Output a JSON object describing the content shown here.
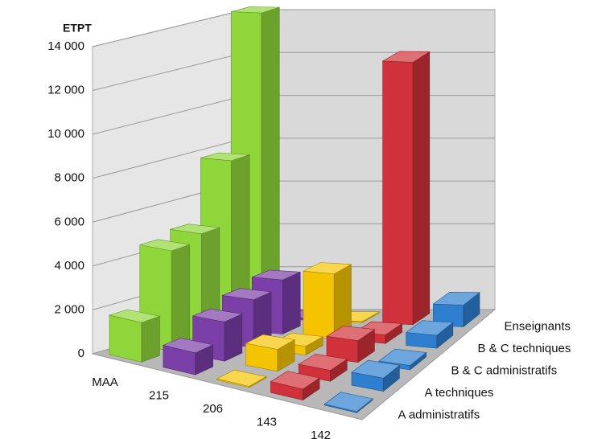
{
  "chart_data": {
    "type": "bar3d",
    "y_axis_title": "ETPT",
    "categories": [
      "MAA",
      "215",
      "206",
      "143",
      "142"
    ],
    "colors": [
      "#8fd63a",
      "#7b3fa8",
      "#f5c400",
      "#d0313a",
      "#2f7fd0"
    ],
    "series": [
      {
        "name": "A administratifs",
        "values": [
          1800,
          1000,
          50,
          500,
          50
        ]
      },
      {
        "name": "A techniques",
        "values": [
          4600,
          1800,
          1000,
          500,
          600
        ]
      },
      {
        "name": "B & C administratifs",
        "values": [
          4900,
          2200,
          400,
          1000,
          200
        ]
      },
      {
        "name": "B & C techniques",
        "values": [
          7800,
          2500,
          3000,
          400,
          600
        ]
      },
      {
        "name": "Enseignants",
        "values": [
          14200,
          100,
          50,
          12200,
          1000
        ]
      }
    ],
    "ylim": [
      0,
      14000
    ],
    "yticks": [
      0,
      {
        "value": 2000,
        "label": "2 000"
      },
      {
        "value": 4000,
        "label": "4 000"
      },
      {
        "value": 6000,
        "label": "6 000"
      },
      {
        "value": 8000,
        "label": "8 000"
      },
      {
        "value": 10000,
        "label": "10 000"
      },
      {
        "value": 12000,
        "label": "12 000"
      },
      {
        "value": 14000,
        "label": "14 000"
      }
    ],
    "grid": true
  }
}
